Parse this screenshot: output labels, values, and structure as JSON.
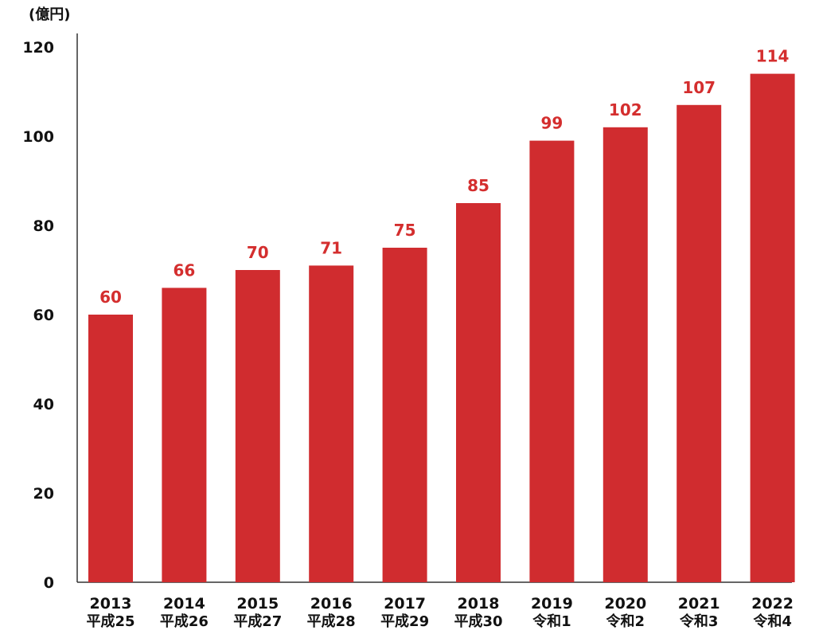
{
  "chart_data": {
    "type": "bar",
    "unit_label": "(億円)",
    "categories": [
      "2013",
      "2014",
      "2015",
      "2016",
      "2017",
      "2018",
      "2019",
      "2020",
      "2021",
      "2022"
    ],
    "era_labels": [
      "平成25",
      "平成26",
      "平成27",
      "平成28",
      "平成29",
      "平成30",
      "令和1",
      "令和2",
      "令和3",
      "令和4"
    ],
    "values": [
      60,
      66,
      70,
      71,
      75,
      85,
      99,
      102,
      107,
      114
    ],
    "ylim": [
      0,
      120
    ],
    "yticks": [
      0,
      20,
      40,
      60,
      80,
      100,
      120
    ],
    "bar_color": "#d02c2f",
    "value_label_color": "#d42e2e",
    "axis_color": "#333333",
    "grid": false
  }
}
